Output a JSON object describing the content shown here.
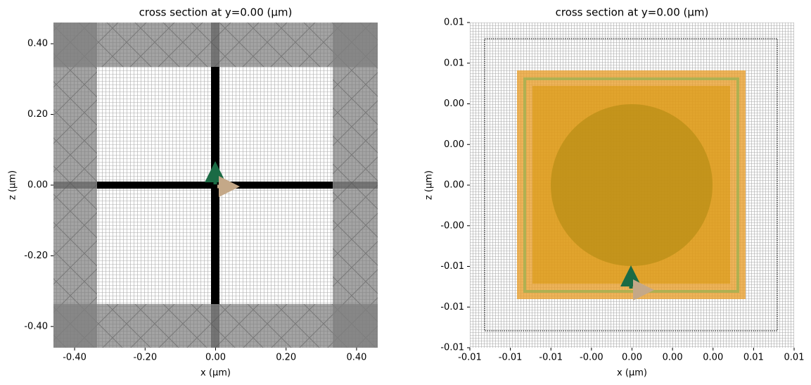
{
  "chart_data": [
    {
      "type": "image",
      "title": "cross section at y=0.00 (µm)",
      "x_label": "x (µm)",
      "y_label": "z (µm)",
      "xlim": [
        -0.46,
        0.46
      ],
      "ylim": [
        -0.46,
        0.46
      ],
      "xticks": [
        {
          "value": -0.4,
          "label": "-0.40"
        },
        {
          "value": -0.2,
          "label": "-0.20"
        },
        {
          "value": 0,
          "label": "0.00"
        },
        {
          "value": 0.2,
          "label": "0.20"
        },
        {
          "value": 0.4,
          "label": "0.40"
        }
      ],
      "yticks": [
        {
          "value": -0.4,
          "label": "-0.40"
        },
        {
          "value": -0.2,
          "label": "-0.20"
        },
        {
          "value": 0,
          "label": "0.00"
        },
        {
          "value": 0.2,
          "label": "0.20"
        },
        {
          "value": 0.4,
          "label": "0.40"
        }
      ]
    },
    {
      "type": "image",
      "title": "cross section at y=0.00 (µm)",
      "x_label": "x (µm)",
      "y_label": "z (µm)",
      "xlim": [
        -0.01,
        0.01
      ],
      "ylim": [
        -0.01,
        0.01
      ],
      "xticks": [
        {
          "value": -0.01,
          "label": "-0.01"
        },
        {
          "value": -0.0075,
          "label": "-0.01"
        },
        {
          "value": -0.005,
          "label": "-0.01"
        },
        {
          "value": -0.0025,
          "label": "-0.00"
        },
        {
          "value": 0,
          "label": "0.00"
        },
        {
          "value": 0.0025,
          "label": "0.00"
        },
        {
          "value": 0.005,
          "label": "0.00"
        },
        {
          "value": 0.0075,
          "label": "0.01"
        },
        {
          "value": 0.01,
          "label": "0.01"
        }
      ],
      "yticks": [
        {
          "value": -0.01,
          "label": "-0.01"
        },
        {
          "value": -0.0075,
          "label": "-0.01"
        },
        {
          "value": -0.005,
          "label": "-0.01"
        },
        {
          "value": -0.0025,
          "label": "-0.00"
        },
        {
          "value": 0,
          "label": "0.00"
        },
        {
          "value": 0.0025,
          "label": "0.00"
        },
        {
          "value": 0.005,
          "label": "0.00"
        },
        {
          "value": 0.0075,
          "label": "0.01"
        },
        {
          "value": 0.01,
          "label": "0.01"
        }
      ]
    }
  ]
}
